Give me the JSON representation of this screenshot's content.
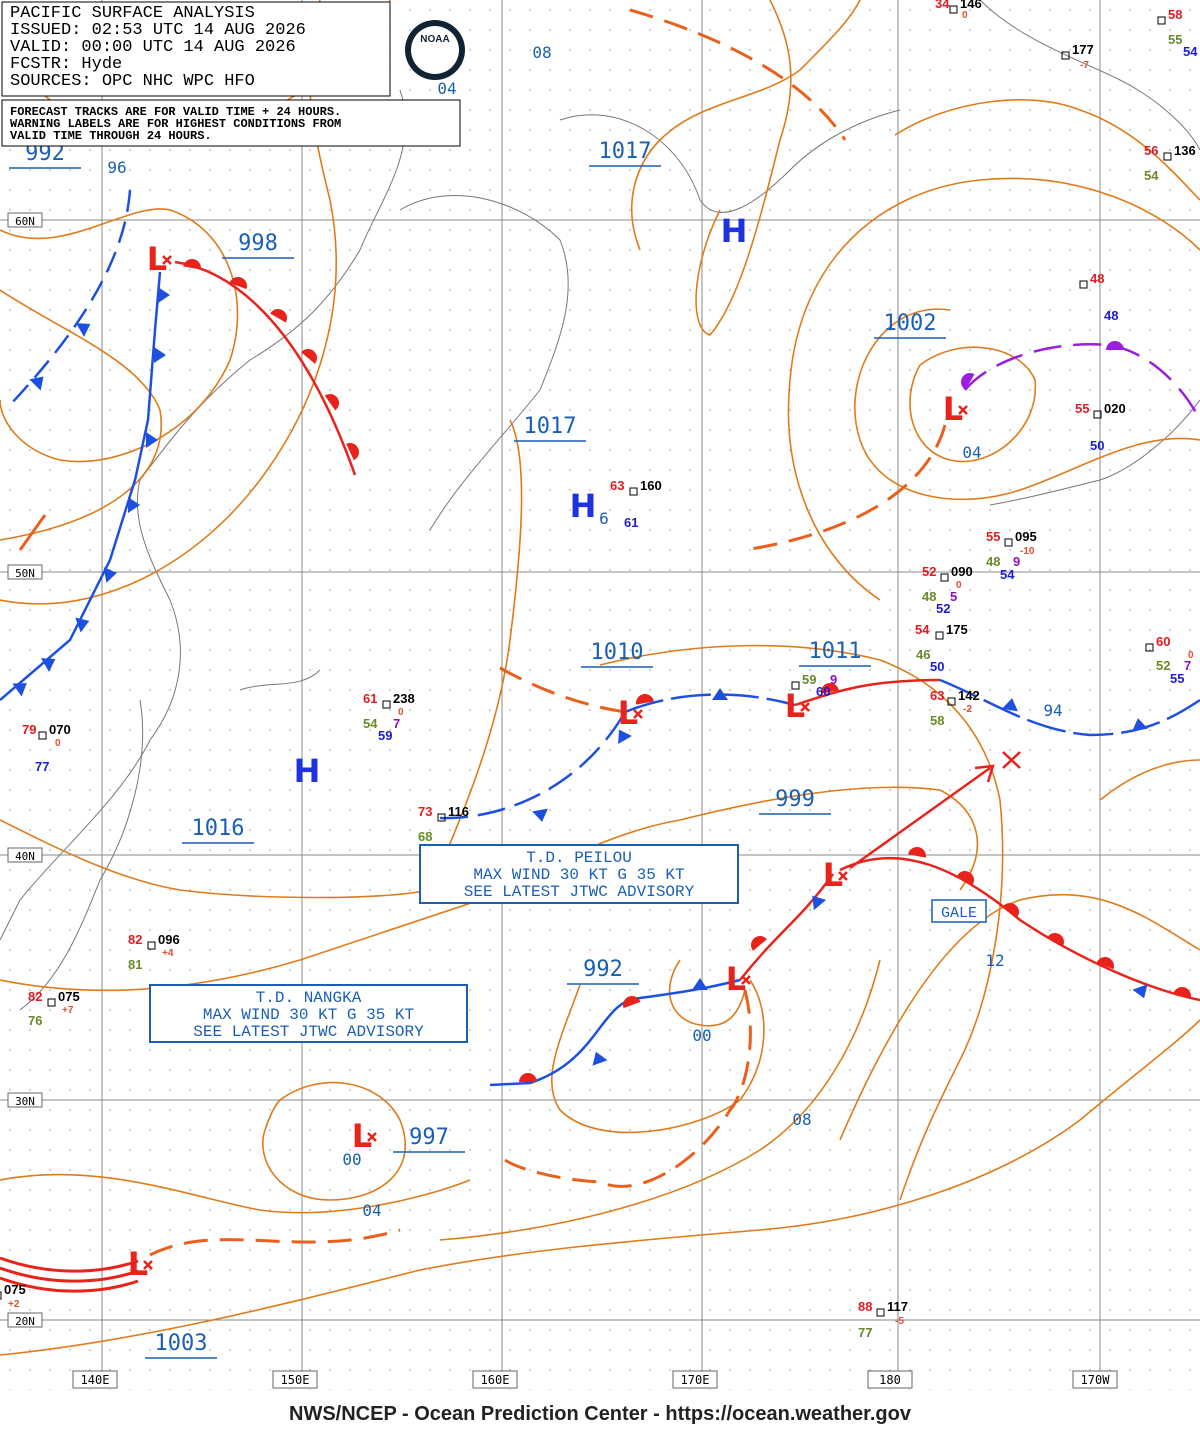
{
  "header": {
    "lines": [
      "PACIFIC SURFACE ANALYSIS",
      "ISSUED:  02:53 UTC 14 AUG 2026",
      "VALID:   00:00 UTC 14 AUG 2026",
      "FCSTR:   Hyde",
      "SOURCES:  OPC NHC WPC HFO"
    ],
    "logo": "NOAA"
  },
  "notice": {
    "lines": [
      "FORECAST TRACKS ARE FOR VALID TIME + 24 HOURS.",
      "WARNING LABELS ARE FOR HIGHEST CONDITIONS FROM",
      "VALID TIME THROUGH 24 HOURS."
    ]
  },
  "isobar_labels": [
    "992",
    "96",
    "998",
    "1017",
    "08",
    "04",
    "1017",
    "1002",
    "04",
    "6",
    "1010",
    "1011",
    "94",
    "999",
    "1016",
    "992",
    "00",
    "12",
    "997",
    "00",
    "04",
    "08",
    "1003"
  ],
  "centers": [
    "L",
    "H",
    "L",
    "H",
    "L",
    "L",
    "H",
    "L",
    "L",
    "L",
    "L"
  ],
  "advisories": [
    {
      "lines": [
        "T.D. PEILOU",
        "MAX WIND 30 KT G 35 KT",
        "SEE LATEST JTWC ADVISORY"
      ]
    },
    {
      "lines": [
        "T.D. NANGKA",
        "MAX WIND 30 KT G 35 KT",
        "SEE LATEST JTWC ADVISORY"
      ]
    }
  ],
  "warning": "GALE",
  "lat_labels": [
    "60N",
    "50N",
    "40N",
    "30N",
    "20N"
  ],
  "lon_labels": [
    "140E",
    "150E",
    "160E",
    "170E",
    "180",
    "170W"
  ],
  "stations": [
    {
      "items": [
        "34",
        "146",
        "0"
      ]
    },
    {
      "items": [
        "177",
        "-7"
      ]
    },
    {
      "items": [
        "58",
        "55",
        "54"
      ]
    },
    {
      "items": [
        "56",
        "136",
        "54"
      ]
    },
    {
      "items": [
        "48",
        "48"
      ]
    },
    {
      "items": [
        "55",
        "020",
        "50"
      ]
    },
    {
      "items": [
        "63",
        "160",
        "61"
      ]
    },
    {
      "items": [
        "55",
        "095",
        "-10",
        "48",
        "9",
        "54"
      ]
    },
    {
      "items": [
        "52",
        "090",
        "0",
        "48",
        "5",
        "52"
      ]
    },
    {
      "items": [
        "54",
        "175",
        "46",
        "50"
      ]
    },
    {
      "items": [
        "59",
        "9",
        "60"
      ]
    },
    {
      "items": [
        "63",
        "142",
        "-2",
        "58"
      ]
    },
    {
      "items": [
        "60",
        "0",
        "52",
        "7",
        "55"
      ]
    },
    {
      "items": [
        "61",
        "238",
        "0",
        "54",
        "7",
        "59"
      ]
    },
    {
      "items": [
        "79",
        "070",
        "0",
        "77"
      ]
    },
    {
      "items": [
        "73",
        "116",
        "68"
      ]
    },
    {
      "items": [
        "82",
        "096",
        "+4",
        "81"
      ]
    },
    {
      "items": [
        "82",
        "075",
        "+7",
        "76"
      ]
    },
    {
      "items": [
        "075",
        "+2"
      ]
    },
    {
      "items": [
        "88",
        "117",
        "-5",
        "77"
      ]
    }
  ],
  "footer": "NWS/NCEP - Ocean Prediction Center - https://ocean.weather.gov"
}
